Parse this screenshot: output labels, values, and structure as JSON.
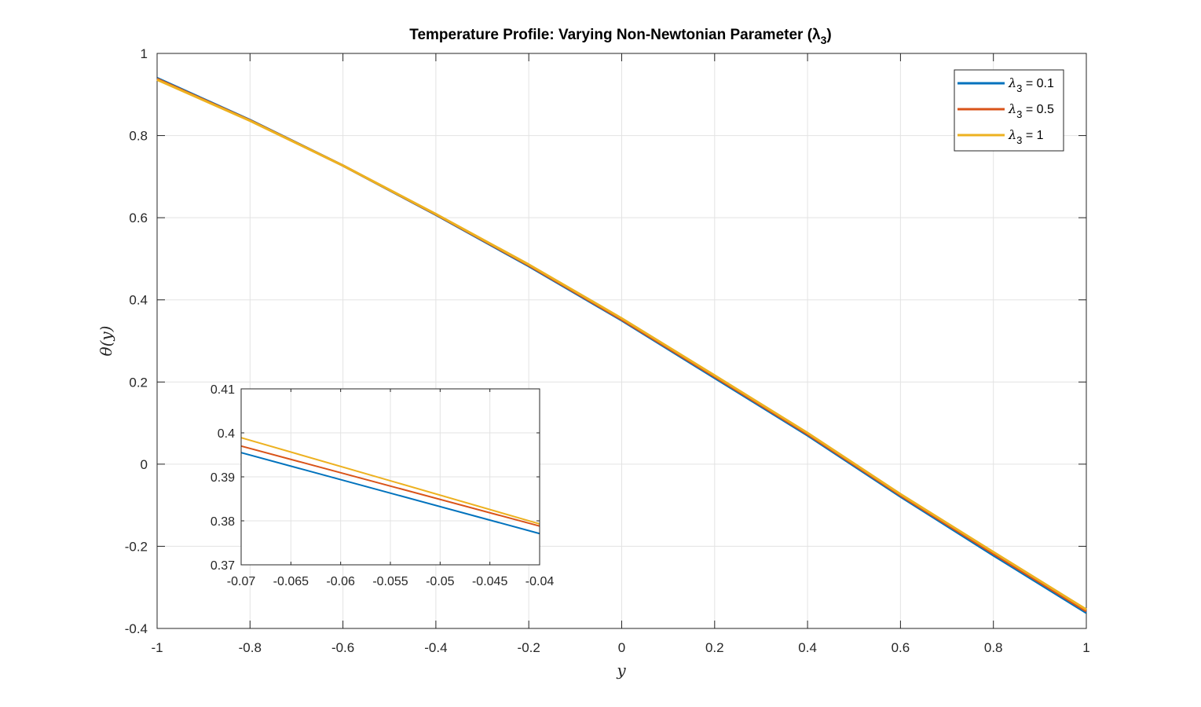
{
  "chart_data": {
    "type": "line",
    "title": "Temperature Profile: Varying Non-Newtonian Parameter (λ",
    "title_sub": "3",
    "title_close": ")",
    "xlabel": "y",
    "ylabel": "θ(y)",
    "xlim": [
      -1,
      1
    ],
    "ylim": [
      -0.4,
      1
    ],
    "xticks": [
      -1,
      -0.8,
      -0.6,
      -0.4,
      -0.2,
      0,
      0.2,
      0.4,
      0.6,
      0.8,
      1
    ],
    "xtick_labels": [
      "-1",
      "-0.8",
      "-0.6",
      "-0.4",
      "-0.2",
      "0",
      "0.2",
      "0.4",
      "0.6",
      "0.8",
      "1"
    ],
    "yticks": [
      -0.4,
      -0.2,
      0,
      0.2,
      0.4,
      0.6,
      0.8,
      1
    ],
    "ytick_labels": [
      "-0.4",
      "-0.2",
      "0",
      "0.2",
      "0.4",
      "0.6",
      "0.8",
      "1"
    ],
    "grid": true,
    "legend_position": "top-right",
    "series": [
      {
        "name": "λ3 = 0.1",
        "legend_base": "λ",
        "legend_sub": "3",
        "legend_rest": " = 0.1",
        "color": "#0072BD",
        "x": [
          -1,
          -0.8,
          -0.6,
          -0.4,
          -0.2,
          0,
          0.2,
          0.4,
          0.6,
          0.8,
          1
        ],
        "y": [
          0.94,
          0.838,
          0.727,
          0.607,
          0.482,
          0.35,
          0.21,
          0.07,
          -0.079,
          -0.222,
          -0.362
        ]
      },
      {
        "name": "λ3 = 0.5",
        "legend_base": "λ",
        "legend_sub": "3",
        "legend_rest": " = 0.5",
        "color": "#D95319",
        "x": [
          -1,
          -0.8,
          -0.6,
          -0.4,
          -0.2,
          0,
          0.2,
          0.4,
          0.6,
          0.8,
          1
        ],
        "y": [
          0.938,
          0.837,
          0.727,
          0.608,
          0.484,
          0.352,
          0.213,
          0.073,
          -0.076,
          -0.218,
          -0.358
        ]
      },
      {
        "name": "λ3 = 1",
        "legend_base": "λ",
        "legend_sub": "3",
        "legend_rest": " = 1",
        "color": "#EDB120",
        "x": [
          -1,
          -0.8,
          -0.6,
          -0.4,
          -0.2,
          0,
          0.2,
          0.4,
          0.6,
          0.8,
          1
        ],
        "y": [
          0.936,
          0.836,
          0.727,
          0.609,
          0.486,
          0.355,
          0.216,
          0.076,
          -0.073,
          -0.214,
          -0.354
        ]
      }
    ],
    "inset": {
      "type": "line",
      "xlim": [
        -0.07,
        -0.04
      ],
      "ylim": [
        0.37,
        0.41
      ],
      "xticks": [
        -0.07,
        -0.065,
        -0.06,
        -0.055,
        -0.05,
        -0.045,
        -0.04
      ],
      "xtick_labels": [
        "-0.07",
        "-0.065",
        "-0.06",
        "-0.055",
        "-0.05",
        "-0.045",
        "-0.04"
      ],
      "yticks": [
        0.37,
        0.38,
        0.39,
        0.4,
        0.41
      ],
      "ytick_labels": [
        "0.37",
        "0.38",
        "0.39",
        "0.4",
        "0.41"
      ],
      "grid": true,
      "series": [
        {
          "name": "λ3 = 0.1",
          "color": "#0072BD",
          "x": [
            -0.07,
            -0.04
          ],
          "y": [
            0.3955,
            0.3771
          ]
        },
        {
          "name": "λ3 = 0.5",
          "color": "#D95319",
          "x": [
            -0.07,
            -0.04
          ],
          "y": [
            0.397,
            0.3788
          ]
        },
        {
          "name": "λ3 = 1",
          "color": "#EDB120",
          "x": [
            -0.07,
            -0.04
          ],
          "y": [
            0.3989,
            0.3793
          ]
        }
      ]
    }
  }
}
